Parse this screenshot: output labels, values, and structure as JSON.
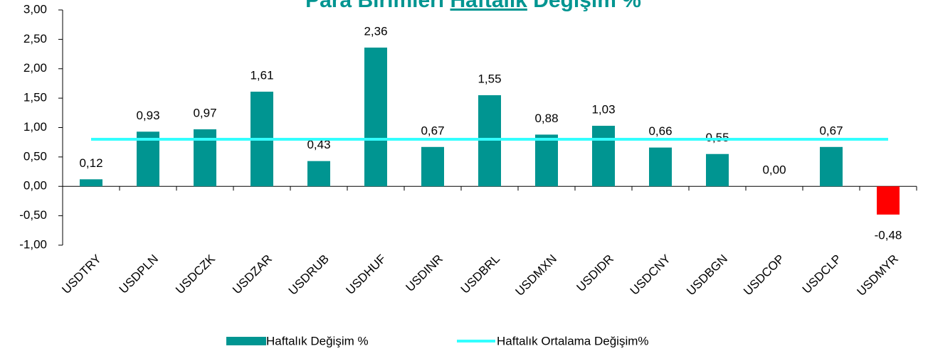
{
  "chart_data": {
    "type": "bar",
    "title": [
      "Para Birimleri ",
      "Haftalık",
      " Değişim %"
    ],
    "categories": [
      "USDTRY",
      "USDPLN",
      "USDCZK",
      "USDZAR",
      "USDRUB",
      "USDHUF",
      "USDINR",
      "USDBRL",
      "USDMXN",
      "USDIDR",
      "USDCNY",
      "USDBGN",
      "USDCOP",
      "USDCLP",
      "USDMYR"
    ],
    "series": [
      {
        "name": "Haftalık Değişim %",
        "type": "bar",
        "color": "#009591",
        "negative_color": "#ff0000",
        "values": [
          0.12,
          0.93,
          0.97,
          1.61,
          0.43,
          2.36,
          0.67,
          1.55,
          0.88,
          1.03,
          0.66,
          0.55,
          0,
          0.67,
          -0.48
        ],
        "value_labels": [
          "0,12",
          "0,93",
          "0,97",
          "1,61",
          "0,43",
          "2,36",
          "0,67",
          "1,55",
          "0,88",
          "1,03",
          "0,66",
          "0,55",
          "0,00",
          "0,67",
          "-0,48"
        ]
      },
      {
        "name": "Haftalık Ortalama Değişim%",
        "type": "line",
        "color": "#33ffff",
        "values": [
          0.8,
          0.8,
          0.8,
          0.8,
          0.8,
          0.8,
          0.8,
          0.8,
          0.8,
          0.8,
          0.8,
          0.8,
          0.8,
          0.8,
          0.8
        ]
      }
    ],
    "ylim": [
      -1,
      3
    ],
    "yticks": [
      {
        "value": -1,
        "label": "-1,00"
      },
      {
        "value": -0.5,
        "label": "-0,50"
      },
      {
        "value": 0,
        "label": "0,00"
      },
      {
        "value": 0.5,
        "label": "0,50"
      },
      {
        "value": 1,
        "label": "1,00"
      },
      {
        "value": 1.5,
        "label": "1,50"
      },
      {
        "value": 2,
        "label": "2,00"
      },
      {
        "value": 2.5,
        "label": "2,50"
      },
      {
        "value": 3,
        "label": "3,00"
      }
    ],
    "grid": false
  }
}
